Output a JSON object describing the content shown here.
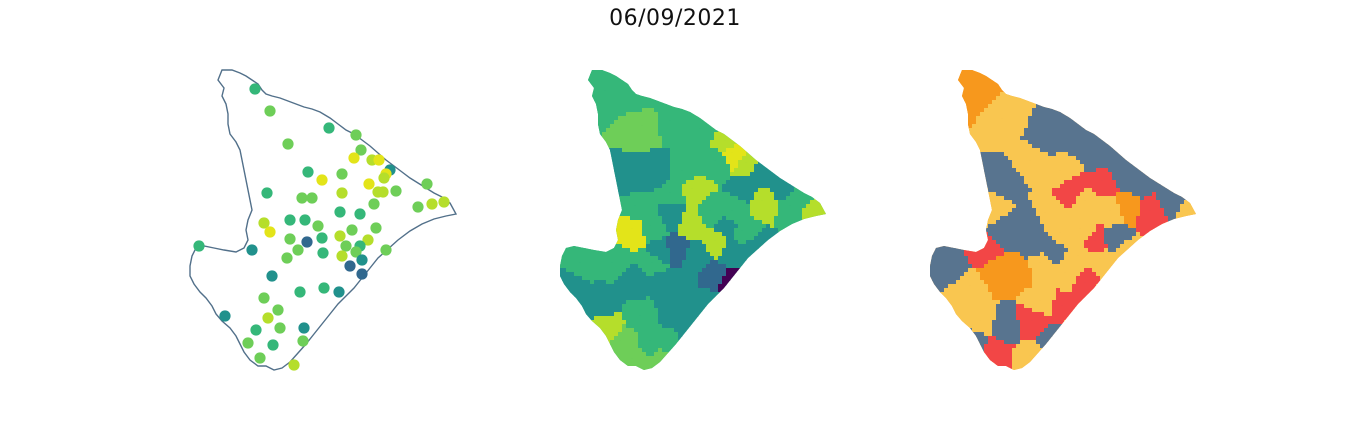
{
  "figure": {
    "title": "06/09/2021"
  },
  "colors": {
    "outline": "#52708a",
    "viridis_dark": "#440154",
    "viridis_blue": "#31688e",
    "viridis_teal": "#21918c",
    "viridis_green": "#35b779",
    "viridis_lightgreen": "#6ece58",
    "viridis_lime": "#b5de2b",
    "viridis_yellow": "#e3e419",
    "cat_slate": "#58748f",
    "cat_sand": "#f9c650",
    "cat_orange": "#f7981d",
    "cat_red": "#f24646"
  },
  "panels": [
    {
      "kind": "points",
      "description_hidden": true
    },
    {
      "kind": "choropleth-continuous"
    },
    {
      "kind": "choropleth-categorical"
    }
  ]
}
